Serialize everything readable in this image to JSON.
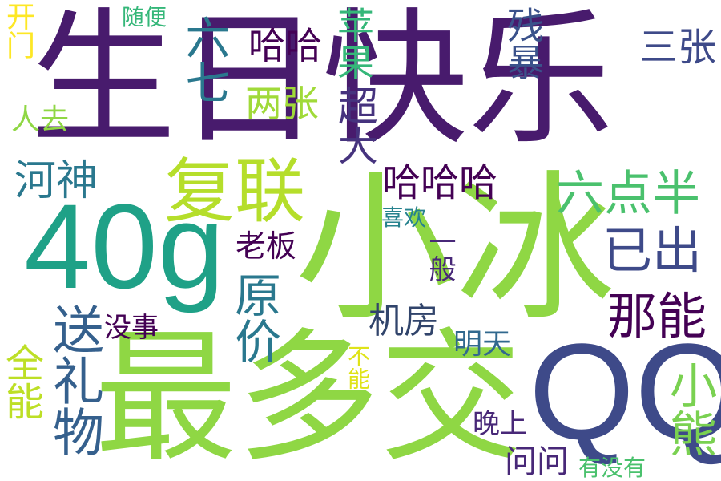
{
  "words": [
    {
      "text": "生日快乐",
      "color": "#481b6d",
      "orient": "h"
    },
    {
      "text": "小冰",
      "color": "#8fd744",
      "orient": "h"
    },
    {
      "text": "最多交",
      "color": "#8fd744",
      "orient": "h"
    },
    {
      "text": "40g",
      "color": "#1fa187",
      "orient": "h"
    },
    {
      "text": "QQ",
      "color": "#3e4a89",
      "orient": "h"
    },
    {
      "text": "复联",
      "color": "#b5de2b",
      "orient": "h"
    },
    {
      "text": "送礼物",
      "color": "#35608d",
      "orient": "v"
    },
    {
      "text": "六七",
      "color": "#2a788e",
      "orient": "v"
    },
    {
      "text": "那能",
      "color": "#440154",
      "orient": "h"
    },
    {
      "text": "已出",
      "color": "#3e4a89",
      "orient": "h"
    },
    {
      "text": "河神",
      "color": "#2a788e",
      "orient": "h"
    },
    {
      "text": "哈哈哈",
      "color": "#440154",
      "orient": "h"
    },
    {
      "text": "六点半",
      "color": "#4ac16d",
      "orient": "h"
    },
    {
      "text": "超大",
      "color": "#46337e",
      "orient": "v"
    },
    {
      "text": "原价",
      "color": "#2a788e",
      "orient": "v"
    },
    {
      "text": "小熊",
      "color": "#7ad151",
      "orient": "v"
    },
    {
      "text": "全能",
      "color": "#bddf26",
      "orient": "v"
    },
    {
      "text": "机房",
      "color": "#31446b",
      "orient": "h"
    },
    {
      "text": "苹果",
      "color": "#35b779",
      "orient": "v"
    },
    {
      "text": "残暴",
      "color": "#3b528b",
      "orient": "v"
    },
    {
      "text": "三张",
      "color": "#3e4a89",
      "orient": "h"
    },
    {
      "text": "两张",
      "color": "#a0da39",
      "orient": "h"
    },
    {
      "text": "哈哈",
      "color": "#440154",
      "orient": "h"
    },
    {
      "text": "问问",
      "color": "#482878",
      "orient": "h"
    },
    {
      "text": "老板",
      "color": "#440154",
      "orient": "h"
    },
    {
      "text": "没事",
      "color": "#440154",
      "orient": "h"
    },
    {
      "text": "明天",
      "color": "#31688e",
      "orient": "h"
    },
    {
      "text": "晚上",
      "color": "#482878",
      "orient": "h"
    },
    {
      "text": "有没有",
      "color": "#4ac16d",
      "orient": "h"
    },
    {
      "text": "人去",
      "color": "#8fd744",
      "orient": "h"
    },
    {
      "text": "随便",
      "color": "#35b779",
      "orient": "h"
    },
    {
      "text": "喜欢",
      "color": "#26828e",
      "orient": "h"
    },
    {
      "text": "一般",
      "color": "#482878",
      "orient": "v"
    },
    {
      "text": "开门",
      "color": "#fde725",
      "orient": "v"
    },
    {
      "text": "不能",
      "color": "#dfe318",
      "orient": "v"
    }
  ]
}
